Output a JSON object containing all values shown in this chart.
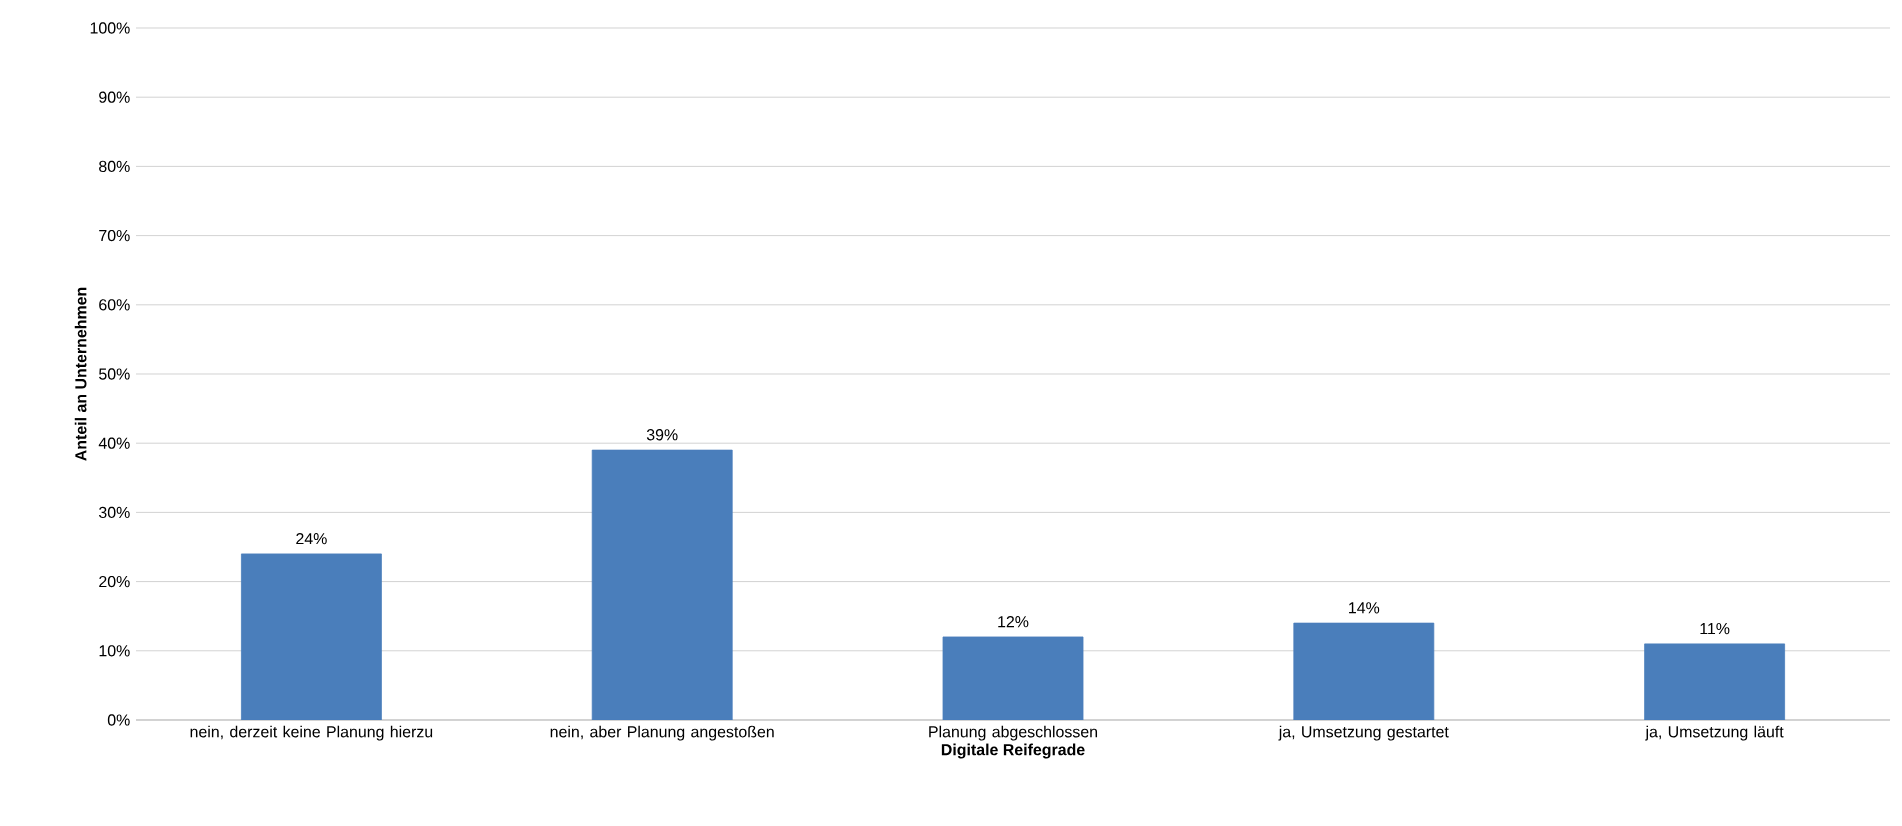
{
  "chart_data": {
    "type": "bar",
    "xlabel": "Digitale Reifegrade",
    "ylabel": "Anteil an Unternehmen",
    "categories": [
      "nein, derzeit keine Planung hierzu",
      "nein, aber Planung angestoßen",
      "Planung abgeschlossen",
      "ja, Umsetzung gestartet",
      "ja, Umsetzung läuft"
    ],
    "values": [
      24,
      39,
      12,
      14,
      11
    ],
    "value_labels": [
      "24%",
      "39%",
      "12%",
      "14%",
      "11%"
    ],
    "color": "#4a7ebb",
    "ylim": [
      0,
      100
    ],
    "yticks": [
      {
        "value": 0,
        "label": "0%"
      },
      {
        "value": 10,
        "label": "10%"
      },
      {
        "value": 20,
        "label": "20%"
      },
      {
        "value": 30,
        "label": "30%"
      },
      {
        "value": 40,
        "label": "40%"
      },
      {
        "value": 50,
        "label": "50%"
      },
      {
        "value": 60,
        "label": "60%"
      },
      {
        "value": 70,
        "label": "70%"
      },
      {
        "value": 80,
        "label": "80%"
      },
      {
        "value": 90,
        "label": "90%"
      },
      {
        "value": 100,
        "label": "100%"
      }
    ],
    "grid": "y"
  }
}
